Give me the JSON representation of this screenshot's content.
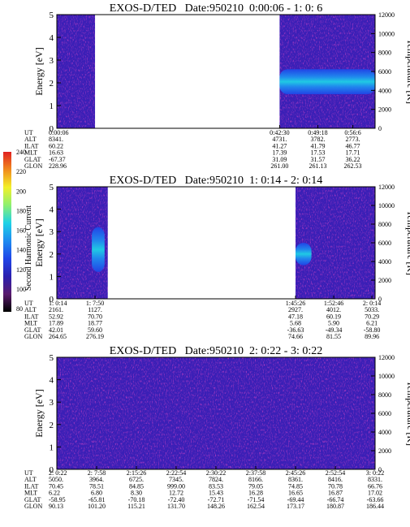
{
  "colorbar": {
    "label": "Second Harmonic Current",
    "ticks": [
      "80",
      "100",
      "120",
      "140",
      "160",
      "180",
      "200",
      "220",
      "240"
    ],
    "colors": [
      "#000000",
      "#5a1a6e",
      "#2a1fb0",
      "#1f46e8",
      "#1e8cf0",
      "#1ed2e6",
      "#8ef070",
      "#f2f02a",
      "#f08a1e",
      "#e02020"
    ]
  },
  "panels": [
    {
      "title": "EXOS-D/TED   Date:950210  0:00:06 - 1: 0: 6",
      "ylabel": "Energy [eV]",
      "y2label": "Temperature [K]",
      "yticks": [
        "0",
        "1",
        "2",
        "3",
        "4",
        "5"
      ],
      "y2ticks": [
        "0",
        "2000",
        "4000",
        "6000",
        "8000",
        "10000",
        "12000"
      ],
      "table": {
        "rows": [
          "UT",
          "ALT",
          "ILAT",
          "MLT",
          "GLAT",
          "GLON"
        ],
        "columns": [
          {
            "pos": 0.0,
            "values": [
              "0:00:06",
              "8341.",
              "60.22",
              "16.63",
              "-67.37",
              "228.96"
            ]
          },
          {
            "pos": 0.7,
            "values": [
              "0:42:30",
              "4731.",
              "41.27",
              "17.39",
              "31.09",
              "261.00"
            ]
          },
          {
            "pos": 0.82,
            "values": [
              "0:49:18",
              "3782.",
              "41.79",
              "17.53",
              "31.57",
              "261.13"
            ]
          },
          {
            "pos": 0.93,
            "values": [
              "0:56:6",
              "2773.",
              "46.77",
              "17.71",
              "36.22",
              "262.53"
            ]
          }
        ]
      }
    },
    {
      "title": "EXOS-D/TED   Date:950210  1: 0:14 - 2: 0:14",
      "ylabel": "Energy [eV]",
      "y2label": "Temperature [K]",
      "yticks": [
        "0",
        "1",
        "2",
        "3",
        "4",
        "5"
      ],
      "y2ticks": [
        "0",
        "2000",
        "4000",
        "6000",
        "8000",
        "10000",
        "12000"
      ],
      "table": {
        "rows": [
          "UT",
          "ALT",
          "ILAT",
          "MLT",
          "GLAT",
          "GLON"
        ],
        "columns": [
          {
            "pos": 0.0,
            "values": [
              "1: 0:14",
              "2161.",
              "52.92",
              "17.89",
              "42.01",
              "264.65"
            ]
          },
          {
            "pos": 0.12,
            "values": [
              "1: 7:50",
              "1127.",
              "70.70",
              "18.77",
              "59.60",
              "276.19"
            ]
          },
          {
            "pos": 0.75,
            "values": [
              "1:45:26",
              "2927.",
              "47.18",
              "5.68",
              "-36.63",
              "74.66"
            ]
          },
          {
            "pos": 0.87,
            "values": [
              "1:52:46",
              "4012.",
              "60.19",
              "5.90",
              "-49.34",
              "81.55"
            ]
          },
          {
            "pos": 0.99,
            "values": [
              "2: 0:14",
              "5033.",
              "70.29",
              "6.21",
              "-58.80",
              "89.96"
            ]
          }
        ]
      }
    },
    {
      "title": "EXOS-D/TED   Date:950210  2: 0:22 - 3: 0:22",
      "ylabel": "Energy [eV]",
      "y2label": "Temperature [K]",
      "yticks": [
        "0",
        "1",
        "2",
        "3",
        "4",
        "5"
      ],
      "y2ticks": [
        "0",
        "2000",
        "4000",
        "6000",
        "8000",
        "10000",
        "12000"
      ],
      "table": {
        "rows": [
          "UT",
          "ALT",
          "ILAT",
          "MLT",
          "GLAT",
          "GLON"
        ],
        "columns": [
          {
            "pos": 0.0,
            "values": [
              "2: 0:22",
              "5050.",
              "70.45",
              "6.22",
              "-58.95",
              "90.13"
            ]
          },
          {
            "pos": 0.125,
            "values": [
              "2: 7:58",
              "3964.",
              "78.51",
              "6.80",
              "-65.81",
              "101.20"
            ]
          },
          {
            "pos": 0.25,
            "values": [
              "2:15:26",
              "6725.",
              "84.85",
              "8.30",
              "-70.18",
              "115.21"
            ]
          },
          {
            "pos": 0.375,
            "values": [
              "2:22:54",
              "7345.",
              "999.00",
              "12.72",
              "-72.40",
              "131.70"
            ]
          },
          {
            "pos": 0.5,
            "values": [
              "2:30:22",
              "7824.",
              "83.53",
              "15.43",
              "-72.71",
              "148.26"
            ]
          },
          {
            "pos": 0.625,
            "values": [
              "2:37:58",
              "8166.",
              "79.05",
              "16.28",
              "-71.54",
              "162.54"
            ]
          },
          {
            "pos": 0.75,
            "values": [
              "2:45:26",
              "8361.",
              "74.85",
              "16.65",
              "-69.44",
              "173.17"
            ]
          },
          {
            "pos": 0.875,
            "values": [
              "2:52:54",
              "8416.",
              "70.78",
              "16.87",
              "-66.74",
              "180.87"
            ]
          },
          {
            "pos": 1.0,
            "values": [
              "3: 0:22",
              "8331.",
              "66.76",
              "17.02",
              "-63.66",
              "186.44"
            ]
          }
        ]
      }
    }
  ],
  "chart_data": [
    {
      "type": "heatmap",
      "title": "EXOS-D/TED   Date:950210  0:00:06 - 1: 0: 6",
      "xlabel": "UT",
      "ylabel": "Energy [eV]",
      "y2label": "Temperature [K]",
      "ylim": [
        0,
        5
      ],
      "y2lim": [
        0,
        12000
      ],
      "x_range": [
        "0:00:06",
        "1: 0: 6"
      ],
      "data_coverage": [
        [
          0.0,
          0.12
        ],
        [
          0.7,
          1.0
        ]
      ],
      "features": [
        {
          "desc": "bright band",
          "x_range": [
            0.7,
            1.0
          ],
          "energy_range_eV": [
            1.5,
            2.6
          ]
        }
      ]
    },
    {
      "type": "heatmap",
      "title": "EXOS-D/TED   Date:950210  1: 0:14 - 2: 0:14",
      "xlabel": "UT",
      "ylabel": "Energy [eV]",
      "y2label": "Temperature [K]",
      "ylim": [
        0,
        5
      ],
      "y2lim": [
        0,
        12000
      ],
      "x_range": [
        "1: 0:14",
        "2: 0:14"
      ],
      "data_coverage": [
        [
          0.0,
          0.16
        ],
        [
          0.75,
          1.0
        ]
      ],
      "features": [
        {
          "desc": "bright streak",
          "x_range": [
            0.11,
            0.15
          ],
          "energy_range_eV": [
            1.2,
            3.2
          ]
        },
        {
          "desc": "bright blob",
          "x_range": [
            0.75,
            0.8
          ],
          "energy_range_eV": [
            1.5,
            2.5
          ]
        }
      ]
    },
    {
      "type": "heatmap",
      "title": "EXOS-D/TED   Date:950210  2: 0:22 - 3: 0:22",
      "xlabel": "UT",
      "ylabel": "Energy [eV]",
      "y2label": "Temperature [K]",
      "ylim": [
        0,
        5
      ],
      "y2lim": [
        0,
        12000
      ],
      "x_range": [
        "2: 0:22",
        "3: 0:22"
      ],
      "data_coverage": [
        [
          0.0,
          1.0
        ]
      ],
      "features": []
    }
  ]
}
